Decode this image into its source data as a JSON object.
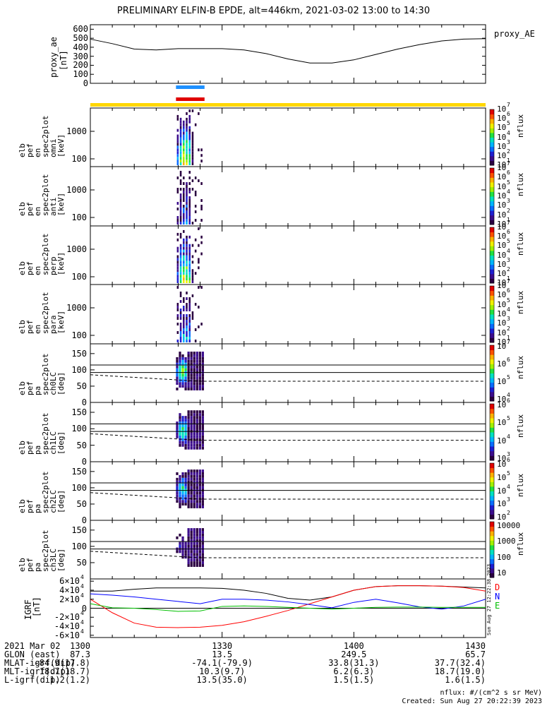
{
  "title": "PRELIMINARY ELFIN-B EPDE, alt=446km, 2021-03-02 13:00 to 14:30",
  "ae_panel": {
    "ylabel": [
      "proxy_ae",
      "[nT]"
    ],
    "label_right": "proxy_AE",
    "yticks": [
      0,
      100,
      200,
      300,
      400,
      500,
      600
    ],
    "ylim": [
      0,
      650
    ]
  },
  "spec_panels": [
    {
      "ylabel": [
        "elb",
        "pef",
        "en",
        "spec2plot",
        "omni",
        "[keV]"
      ],
      "yticks": [
        "1000",
        "100"
      ],
      "cbar_label": "nflux",
      "cbar_ticks": [
        "7",
        "6",
        "5",
        "4",
        "3",
        "2",
        "1"
      ]
    },
    {
      "ylabel": [
        "elb",
        "pef",
        "en",
        "spec2plot",
        "anti",
        "[keV]"
      ],
      "yticks": [
        "1000",
        "100"
      ],
      "cbar_label": "nflux",
      "cbar_ticks": [
        "7",
        "6",
        "5",
        "4",
        "3",
        "2",
        "1"
      ]
    },
    {
      "ylabel": [
        "elb",
        "pef",
        "en",
        "spec2plot",
        "perp",
        "[keV]"
      ],
      "yticks": [
        "1000",
        "100"
      ],
      "cbar_label": "nflux",
      "cbar_ticks": [
        "7",
        "6",
        "5",
        "4",
        "3",
        "2",
        "1"
      ]
    },
    {
      "ylabel": [
        "elb",
        "pef",
        "en",
        "spec2plot",
        "para",
        "[keV]"
      ],
      "yticks": [
        "1000",
        "100"
      ],
      "cbar_label": "nflux",
      "cbar_ticks": [
        "7",
        "6",
        "5",
        "4",
        "3",
        "2",
        "1"
      ]
    }
  ],
  "pa_panels": [
    {
      "ylabel": [
        "elb",
        "pef",
        "pa",
        "spec2plot",
        "ch0LC",
        "[deg]"
      ],
      "yticks": [
        "150",
        "100",
        "50",
        "0"
      ],
      "cbar_label": "nflux",
      "cbar_ticks": [
        "7",
        "6",
        "5",
        "4"
      ]
    },
    {
      "ylabel": [
        "elb",
        "pef",
        "pa",
        "spec2plot",
        "ch1LC",
        "[deg]"
      ],
      "yticks": [
        "150",
        "100",
        "50",
        "0"
      ],
      "cbar_label": "nflux",
      "cbar_ticks": [
        "6",
        "5",
        "4",
        "3"
      ]
    },
    {
      "ylabel": [
        "elb",
        "pef",
        "pa",
        "spec2plot",
        "ch2LC",
        "[deg]"
      ],
      "yticks": [
        "150",
        "100",
        "50",
        "0"
      ],
      "cbar_label": "nflux",
      "cbar_ticks": [
        "6",
        "5",
        "4",
        "3",
        "2"
      ]
    },
    {
      "ylabel": [
        "elb",
        "pef",
        "pa",
        "spec2plot",
        "ch3LC",
        "[deg]"
      ],
      "yticks": [
        "150",
        "100",
        "50"
      ],
      "cbar_label": "nflux",
      "cbar_ticks_linear": [
        "10000",
        "1000",
        "100",
        "10"
      ]
    }
  ],
  "igrf_panel": {
    "ylabel": [
      "IGRF",
      "[nT]"
    ],
    "yticks": [
      "6",
      "4",
      "2",
      "0",
      "-2",
      "-4",
      "-6"
    ],
    "ytick_exponent": "4",
    "components": [
      "D",
      "N",
      "E"
    ],
    "component_colors": [
      "#ff0000",
      "#0000ff",
      "#00c000"
    ],
    "created_vertical": "Sun Aug 27 12:22:38 2023"
  },
  "xaxis": {
    "row_labels": [
      "2021 Mar 02",
      "GLON (east)",
      "MLAT-igrf(dip)",
      "MLT-igrf(dip)",
      "L-igrf(dip)"
    ],
    "ticks": [
      {
        "time": "1300",
        "glon": "87.3",
        "mlat": "-84.9(17.8)",
        "mlt": "18.7(18.7)",
        "l": "1.2(1.2)"
      },
      {
        "time": "1330",
        "glon": "13.5",
        "mlat": "-74.1(-79.9)",
        "mlt": "10.3(9.7)",
        "l": "13.5(35.0)"
      },
      {
        "time": "1400",
        "glon": "249.5",
        "mlat": "33.8(31.3)",
        "mlt": "6.2(6.3)",
        "l": "1.5(1.5)"
      },
      {
        "time": "1430",
        "glon": "65.7",
        "mlat": "37.7(32.4)",
        "mlt": "18.7(19.0)",
        "l": "1.6(1.5)"
      }
    ]
  },
  "footer": {
    "units": "nflux: #/(cm^2 s sr MeV)",
    "created": "Created: Sun Aug 27 20:22:39 2023"
  },
  "colors": {
    "bar_blue": "#1e90ff",
    "bar_red": "#e00000",
    "bar_yellow": "#ffd700"
  },
  "chart_data": {
    "type": "heatmap",
    "time_range": [
      "13:00",
      "14:30"
    ],
    "proxy_ae": {
      "x_minutes_after_1300": [
        0,
        5,
        10,
        15,
        20,
        25,
        30,
        35,
        40,
        45,
        50,
        55,
        60,
        65,
        70,
        75,
        80,
        85,
        90
      ],
      "y": [
        490,
        440,
        380,
        370,
        385,
        385,
        385,
        370,
        330,
        270,
        225,
        225,
        260,
        320,
        380,
        430,
        470,
        490,
        495
      ]
    },
    "science_zone_minutes": [
      19.5,
      26.0
    ],
    "igrf": {
      "x_minutes_after_1300": [
        0,
        5,
        10,
        15,
        20,
        25,
        30,
        35,
        40,
        45,
        50,
        55,
        60,
        65,
        70,
        75,
        80,
        85,
        90
      ],
      "D": [
        20000,
        -10000,
        -33000,
        -42000,
        -43000,
        -42000,
        -38000,
        -30000,
        -18000,
        -5000,
        10000,
        25000,
        40000,
        48000,
        50000,
        50000,
        49000,
        46000,
        38000
      ],
      "N": [
        32000,
        29000,
        25000,
        20000,
        15000,
        10000,
        20000,
        20000,
        18000,
        14000,
        8000,
        1000,
        13000,
        20000,
        12000,
        3000,
        -2000,
        5000,
        20000
      ],
      "E": [
        10000,
        1000,
        0,
        -3000,
        -7000,
        -6000,
        4000,
        5000,
        4000,
        2000,
        0,
        -2000,
        0,
        2000,
        2500,
        2500,
        2000,
        2000,
        2000
      ],
      "total": [
        38000,
        38000,
        42000,
        45000,
        45000,
        45000,
        44000,
        40000,
        33000,
        22000,
        18000,
        25000,
        40000,
        48000,
        50000,
        50000,
        49000,
        47000,
        45000
      ]
    },
    "loss_cone_deg": {
      "upper": [
        115,
        115,
        115,
        115,
        115,
        115,
        115,
        115,
        115,
        115
      ],
      "lower": [
        92,
        92,
        92,
        92,
        92,
        92,
        92,
        92,
        92,
        92
      ],
      "dashed_start": 85,
      "dashed_end": 65
    }
  }
}
